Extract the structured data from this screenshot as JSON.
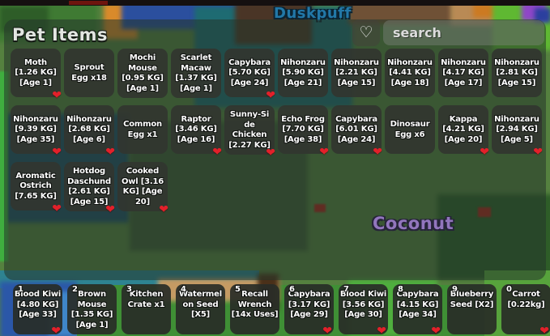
{
  "scene": {
    "player_label": "Duskpuff",
    "world_label": "Coconut"
  },
  "panel": {
    "title": "Pet Items",
    "search": {
      "placeholder": "search",
      "value": ""
    },
    "favorite_button_icon": "heart-outline"
  },
  "icons": {
    "heart_filled": "❤",
    "heart_outline": "♡"
  },
  "colors": {
    "favorite_heart": "#e3202a",
    "player_label": "#2278a8",
    "world_label": "#9a79c9",
    "panel_tint": "rgba(36,53,42,0.55)"
  },
  "grid": {
    "rows": [
      [
        {
          "label": "Moth\n[1.26 KG]\n[Age 1]",
          "heart": true
        },
        {
          "label": "Sprout\nEgg x18",
          "heart": false
        },
        {
          "label": "Mochi\nMouse\n[0.95 KG]\n[Age 1]",
          "heart": false
        },
        {
          "label": "Scarlet\nMacaw\n[1.37 KG]\n[Age 1]",
          "heart": false
        },
        {
          "label": "Capybara\n[5.70 KG]\n[Age 24]",
          "heart": true
        },
        {
          "label": "Nihonzaru\n[5.90 KG]\n[Age 21]",
          "heart": false
        },
        {
          "label": "Nihonzaru\n[2.21 KG]\n[Age 15]",
          "heart": false
        },
        {
          "label": "Nihonzaru\n[4.41 KG]\n[Age 18]",
          "heart": false
        },
        {
          "label": "Nihonzaru\n[4.17 KG]\n[Age 17]",
          "heart": false
        },
        {
          "label": "Nihonzaru\n[2.81 KG]\n[Age 15]",
          "heart": false
        }
      ],
      [
        {
          "label": "Nihonzaru\n[9.39 KG]\n[Age 35]",
          "heart": true
        },
        {
          "label": "Nihonzaru\n[2.68 KG]\n[Age 6]",
          "heart": true
        },
        {
          "label": "Common\nEgg x1",
          "heart": false
        },
        {
          "label": "Raptor\n[3.46 KG]\n[Age 16]",
          "heart": true
        },
        {
          "label": "Sunny-Si\nde\nChicken\n[2.27 KG]",
          "heart": true
        },
        {
          "label": "Echo Frog\n[7.70 KG]\n[Age 38]",
          "heart": true
        },
        {
          "label": "Capybara\n[6.01 KG]\n[Age 24]",
          "heart": true
        },
        {
          "label": "Dinosaur\nEgg x6",
          "heart": false
        },
        {
          "label": "Kappa\n[4.21 KG]\n[Age 20]",
          "heart": true
        },
        {
          "label": "Nihonzaru\n[2.94 KG]\n[Age 5]",
          "heart": true
        }
      ],
      [
        {
          "label": "Aromatic\nOstrich\n[7.65 KG]",
          "heart": true
        },
        {
          "label": "Hotdog\nDaschund\n[2.61 KG]\n[Age 15]",
          "heart": true
        },
        {
          "label": "Cooked\nOwl [3.16\nKG] [Age\n20]",
          "heart": true
        }
      ]
    ]
  },
  "hotbar": {
    "slots": [
      {
        "key": "1",
        "label": "Blood Kiwi\n[4.80 KG]\n[Age 33]",
        "heart": true
      },
      {
        "key": "2",
        "label": "Brown\nMouse\n[1.35 KG]\n[Age 1]",
        "heart": false
      },
      {
        "key": "3",
        "label": "Kitchen\nCrate x1",
        "heart": false
      },
      {
        "key": "4",
        "label": "Watermel\non Seed\n[X5]",
        "heart": false
      },
      {
        "key": "5",
        "label": "Recall\nWrench\n[14x Uses]",
        "heart": false
      },
      {
        "key": "6",
        "label": "Capybara\n[3.17 KG]\n[Age 29]",
        "heart": true
      },
      {
        "key": "7",
        "label": "Blood Kiwi\n[3.56 KG]\n[Age 30]",
        "heart": true
      },
      {
        "key": "8",
        "label": "Capybara\n[4.15 KG]\n[Age 34]",
        "heart": true
      },
      {
        "key": "9",
        "label": "Blueberry\nSeed [X2]",
        "heart": false
      },
      {
        "key": "0",
        "label": "Carrot\n[0.22kg]",
        "heart": true
      }
    ]
  }
}
